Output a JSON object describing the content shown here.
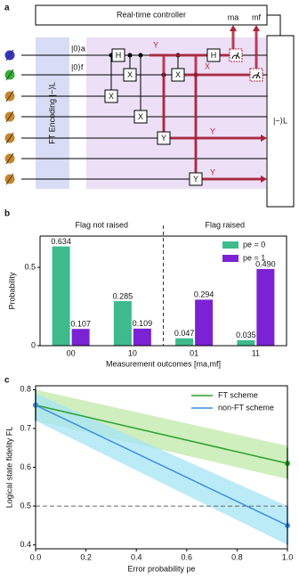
{
  "diagram": {
    "label": "a",
    "controller": "Real-time controller",
    "measurements": [
      "ma",
      "mf"
    ],
    "inputs": [
      "|0⟩a",
      "|0⟩f"
    ],
    "encoding": "FT Encoding |−⟩L",
    "output": "|−⟩L",
    "gates": [
      "H",
      "X",
      "X",
      "X",
      "Y",
      "Y",
      "X",
      "H"
    ],
    "errors": [
      "Y",
      "X",
      "Y",
      "Y"
    ]
  },
  "chart_data": [
    {
      "type": "bar",
      "label": "b",
      "categories": [
        "00",
        "10",
        "01",
        "11"
      ],
      "x_label": "Measurement outcomes [ma,mf]",
      "y_label": "Probability",
      "annotations": [
        "Flag not raised",
        "Flag raised"
      ],
      "ylim": [
        0,
        0.7
      ],
      "yticks": [
        0,
        0.5
      ],
      "legend": "upper right",
      "series": [
        {
          "name": "pe = 0",
          "color": "#3dbb8c",
          "values": [
            0.634,
            0.285,
            0.047,
            0.035
          ]
        },
        {
          "name": "pe = 1",
          "color": "#7b22d4",
          "values": [
            0.107,
            0.109,
            0.294,
            0.49
          ],
          "value_labels": [
            "0.107",
            "0.109",
            "0.294",
            "0.490"
          ]
        }
      ]
    },
    {
      "type": "line",
      "label": "c",
      "x_label": "Error probability pe",
      "y_label": "Logical state fidelity FL",
      "xlim": [
        0,
        1
      ],
      "ylim": [
        0.39,
        0.81
      ],
      "xticks": [
        {
          "value": 0,
          "label": "0.0"
        },
        0.2,
        0.4,
        0.6,
        0.8,
        {
          "value": 1,
          "label": "1.0"
        }
      ],
      "yticks": [
        0.4,
        0.5,
        0.6,
        0.7,
        0.8
      ],
      "hline": 0.5,
      "legend": "upper right",
      "x": [
        0,
        1
      ],
      "series": [
        {
          "name": "FT scheme",
          "color": "#2ca02c",
          "band_color": "#bfeaa8",
          "values": [
            0.76,
            0.61
          ],
          "errors": [
            0.04,
            0.04
          ],
          "band_lower": [
            0.72,
            0.57
          ],
          "band_upper": [
            0.8,
            0.655
          ]
        },
        {
          "name": "non-FT scheme",
          "color": "#3a8ee0",
          "band_color": "#a6e4f5",
          "values": [
            0.76,
            0.45
          ],
          "errors": [
            0.04,
            0.05
          ],
          "band_lower": [
            0.72,
            0.4
          ],
          "band_upper": [
            0.79,
            0.5
          ]
        }
      ]
    }
  ]
}
